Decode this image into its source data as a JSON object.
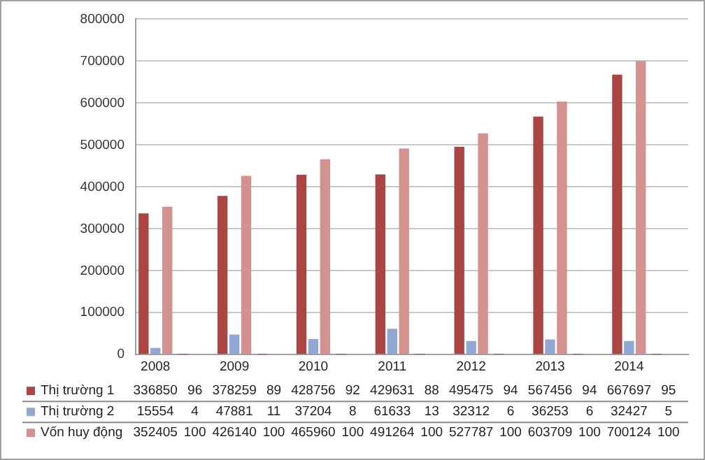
{
  "chart_data": {
    "type": "bar",
    "categories": [
      "2008",
      null,
      "2009",
      null,
      "2010",
      null,
      "2011",
      null,
      "2012",
      null,
      "2013",
      null,
      "2014",
      null
    ],
    "series": [
      {
        "name": "Thị trường 1",
        "color": "#a94543",
        "values": [
          336850,
          96,
          378259,
          89,
          428756,
          92,
          429631,
          88,
          495475,
          94,
          567456,
          94,
          667697,
          95
        ],
        "value_labels": [
          "336850",
          "96",
          "378259",
          "89",
          "428756",
          "92",
          "429631",
          "88",
          "495475",
          "94",
          "567456",
          "94",
          "667697",
          "95"
        ]
      },
      {
        "name": "Thị trường 2",
        "color": "#91a9d2",
        "values": [
          15554,
          4,
          47881,
          11,
          37204,
          8,
          61633,
          13,
          32312,
          6,
          36253,
          6,
          32427,
          5
        ],
        "value_labels": [
          "15554",
          "4",
          "47881",
          "11",
          "37204",
          "8",
          "61633",
          "13",
          "32312",
          "6",
          "36253",
          "6",
          "32427",
          "5"
        ]
      },
      {
        "name": "Vốn huy động",
        "color": "#d39190",
        "values": [
          352405,
          100,
          426140,
          100,
          465960,
          100,
          491264,
          100,
          527787,
          100,
          603709,
          100,
          700124,
          100
        ],
        "value_labels": [
          "352405",
          "100",
          "426140",
          "100",
          "465960",
          "100",
          "491264",
          "100",
          "527787",
          "100",
          "603709",
          "100",
          "700124",
          "100"
        ]
      }
    ],
    "ylim": [
      0,
      800000
    ],
    "yticks": [
      0,
      100000,
      200000,
      300000,
      400000,
      500000,
      600000,
      700000,
      800000
    ],
    "grid": "y",
    "legend": "bottom left"
  }
}
